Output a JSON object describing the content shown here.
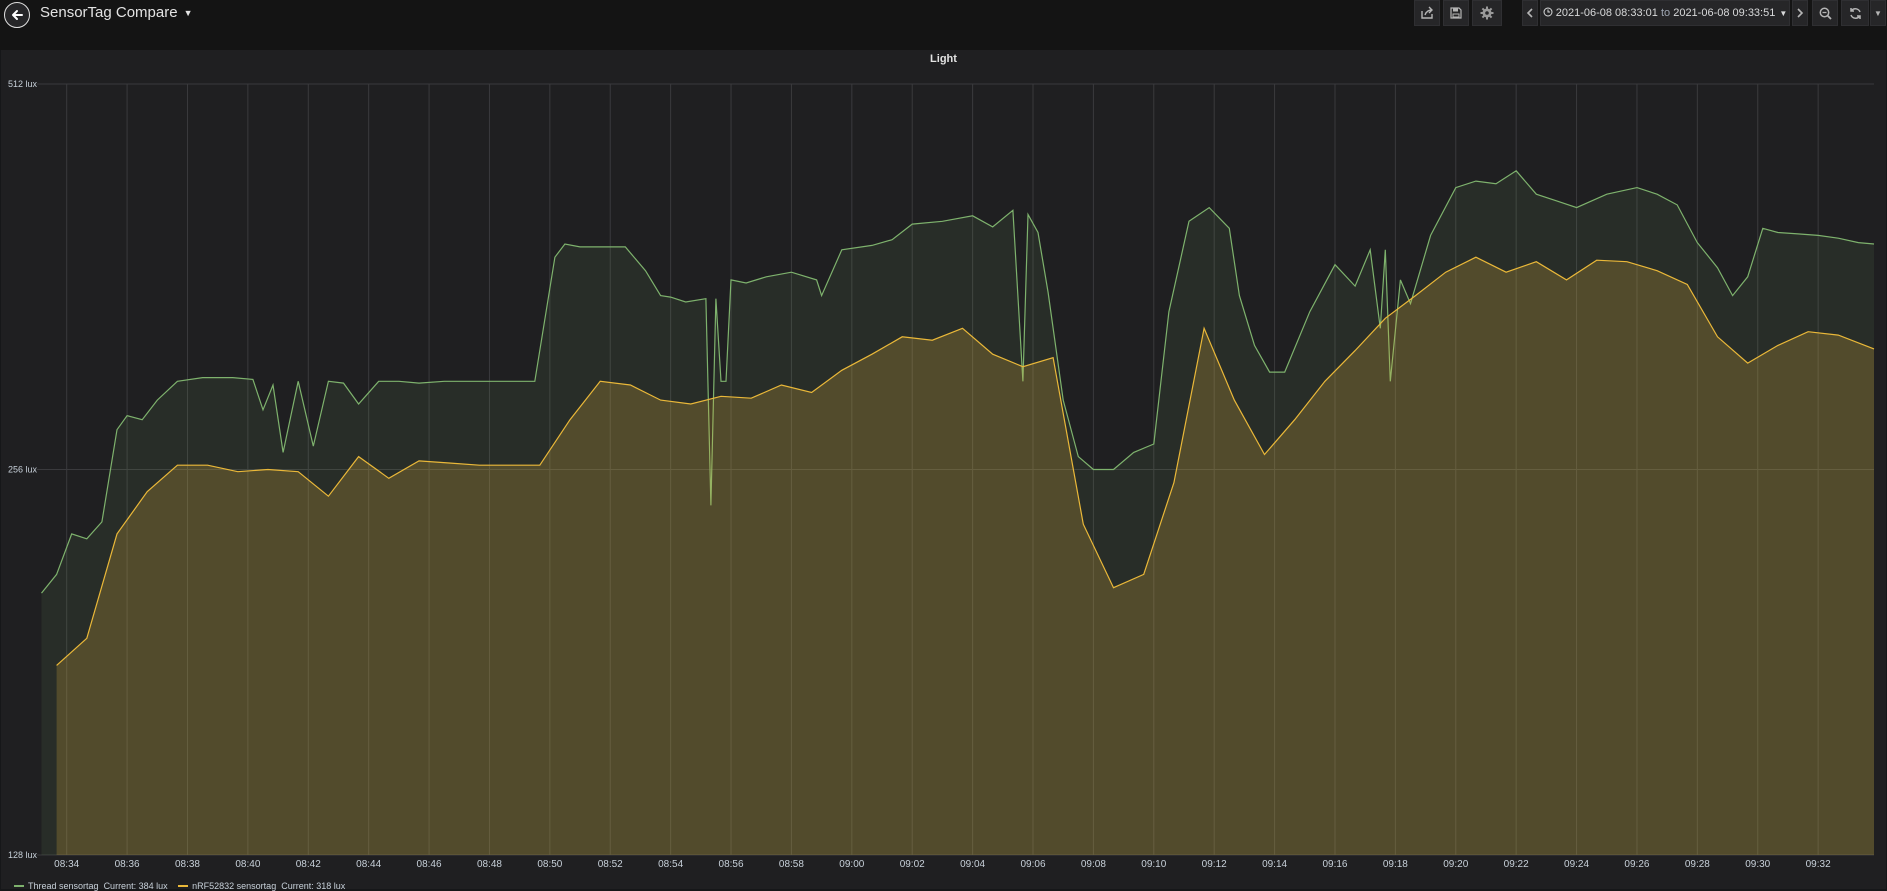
{
  "dashboard": {
    "title": "SensorTag Compare"
  },
  "toolbar": {
    "share_icon": "share-icon",
    "save_icon": "save-icon",
    "settings_icon": "gear-icon",
    "time_range": {
      "from": "2021-06-08 08:33:01",
      "to_word": "to",
      "to": "2021-06-08 09:33:51"
    }
  },
  "panel": {
    "title": "Light"
  },
  "colors": {
    "thread": "#7eb26d",
    "nrf": "#eab839",
    "background": "#1f1f21"
  },
  "legend": [
    {
      "name": "Thread sensortag",
      "current_label": "Current:",
      "current": "384 lux"
    },
    {
      "name": "nRF52832 sensortag",
      "current_label": "Current:",
      "current": "318 lux"
    }
  ],
  "chart_data": {
    "type": "area",
    "title": "Light",
    "y_scale": "log2",
    "ylim": [
      128,
      512
    ],
    "y_ticks": [
      "512 lux",
      "256 lux",
      "128 lux"
    ],
    "x_ticks": [
      "08:34",
      "08:36",
      "08:38",
      "08:40",
      "08:42",
      "08:44",
      "08:46",
      "08:48",
      "08:50",
      "08:52",
      "08:54",
      "08:56",
      "08:58",
      "09:00",
      "09:02",
      "09:04",
      "09:06",
      "09:08",
      "09:10",
      "09:12",
      "09:14",
      "09:16",
      "09:18",
      "09:20",
      "09:22",
      "09:24",
      "09:26",
      "09:28",
      "09:30",
      "09:32"
    ],
    "grid": true,
    "series": [
      {
        "name": "Thread sensortag",
        "color": "#7eb26d",
        "x": [
          "08:33:10",
          "08:33:40",
          "08:34:10",
          "08:34:40",
          "08:35:10",
          "08:35:40",
          "08:36:00",
          "08:36:30",
          "08:37:00",
          "08:37:40",
          "08:38:30",
          "08:39:30",
          "08:40:10",
          "08:40:30",
          "08:40:50",
          "08:41:10",
          "08:41:40",
          "08:42:10",
          "08:42:40",
          "08:43:10",
          "08:43:40",
          "08:44:20",
          "08:45:00",
          "08:45:40",
          "08:46:30",
          "08:47:30",
          "08:48:30",
          "08:49:30",
          "08:50:10",
          "08:50:30",
          "08:51:00",
          "08:51:40",
          "08:52:30",
          "08:53:10",
          "08:53:40",
          "08:54:00",
          "08:54:30",
          "08:55:10",
          "08:55:20",
          "08:55:30",
          "08:55:40",
          "08:55:50",
          "08:56:00",
          "08:56:30",
          "08:57:10",
          "08:58:00",
          "08:58:50",
          "08:59:00",
          "08:59:40",
          "09:00:40",
          "09:01:20",
          "09:02:00",
          "09:03:00",
          "09:04:00",
          "09:04:40",
          "09:05:20",
          "09:05:40",
          "09:05:50",
          "09:06:10",
          "09:06:30",
          "09:07:00",
          "09:07:30",
          "09:08:00",
          "09:08:40",
          "09:09:20",
          "09:10:00",
          "09:10:30",
          "09:11:10",
          "09:11:50",
          "09:12:30",
          "09:12:50",
          "09:13:20",
          "09:13:50",
          "09:14:20",
          "09:15:10",
          "09:16:00",
          "09:16:40",
          "09:17:10",
          "09:17:30",
          "09:17:40",
          "09:17:50",
          "09:18:10",
          "09:18:30",
          "09:19:10",
          "09:20:00",
          "09:20:40",
          "09:21:20",
          "09:22:00",
          "09:22:40",
          "09:23:20",
          "09:24:00",
          "09:25:00",
          "09:26:00",
          "09:26:40",
          "09:27:20",
          "09:28:00",
          "09:28:40",
          "09:29:10",
          "09:29:40",
          "09:30:10",
          "09:30:40",
          "09:31:20",
          "09:32:00",
          "09:32:40",
          "09:33:20",
          "09:33:51"
        ],
        "values": [
          205,
          212,
          228,
          226,
          233,
          275,
          282,
          280,
          290,
          300,
          302,
          302,
          301,
          285,
          298,
          264,
          300,
          267,
          300,
          299,
          288,
          300,
          300,
          299,
          300,
          300,
          300,
          300,
          375,
          384,
          382,
          382,
          382,
          366,
          350,
          349,
          346,
          348,
          240,
          348,
          300,
          300,
          360,
          358,
          362,
          365,
          360,
          350,
          380,
          383,
          387,
          398,
          400,
          404,
          396,
          408,
          300,
          405,
          392,
          352,
          290,
          262,
          256,
          256,
          264,
          268,
          340,
          400,
          410,
          395,
          350,
          320,
          305,
          305,
          340,
          370,
          356,
          380,
          330,
          380,
          300,
          360,
          345,
          390,
          425,
          430,
          428,
          438,
          420,
          415,
          410,
          420,
          425,
          420,
          412,
          385,
          368,
          350,
          362,
          395,
          392,
          391,
          390,
          388,
          385,
          384
        ]
      },
      {
        "name": "nRF52832 sensortag",
        "color": "#eab839",
        "x": [
          "08:33:40",
          "08:34:40",
          "08:35:40",
          "08:36:40",
          "08:37:40",
          "08:38:40",
          "08:39:40",
          "08:40:40",
          "08:41:40",
          "08:42:40",
          "08:43:40",
          "08:44:40",
          "08:45:40",
          "08:46:40",
          "08:47:40",
          "08:48:40",
          "08:49:40",
          "08:50:40",
          "08:51:40",
          "08:52:40",
          "08:53:40",
          "08:54:40",
          "08:55:40",
          "08:56:40",
          "08:57:40",
          "08:58:40",
          "08:59:40",
          "09:00:40",
          "09:01:40",
          "09:02:40",
          "09:03:40",
          "09:04:40",
          "09:05:40",
          "09:06:40",
          "09:07:40",
          "09:08:40",
          "09:09:40",
          "09:10:40",
          "09:11:40",
          "09:12:40",
          "09:13:40",
          "09:14:40",
          "09:15:40",
          "09:16:40",
          "09:17:40",
          "09:18:40",
          "09:19:40",
          "09:20:40",
          "09:21:40",
          "09:22:40",
          "09:23:40",
          "09:24:40",
          "09:25:40",
          "09:26:40",
          "09:27:40",
          "09:28:40",
          "09:29:40",
          "09:30:40",
          "09:31:40",
          "09:32:40",
          "09:33:51"
        ],
        "values": [
          180,
          189,
          228,
          246,
          258,
          258,
          255,
          256,
          255,
          244,
          262,
          252,
          260,
          259,
          258,
          258,
          258,
          280,
          300,
          298,
          290,
          288,
          292,
          291,
          298,
          294,
          306,
          315,
          325,
          323,
          330,
          315,
          308,
          313,
          232,
          207,
          212,
          250,
          330,
          290,
          263,
          280,
          300,
          317,
          336,
          350,
          365,
          375,
          365,
          372,
          360,
          373,
          372,
          366,
          357,
          325,
          310,
          320,
          328,
          326,
          318
        ]
      }
    ]
  }
}
